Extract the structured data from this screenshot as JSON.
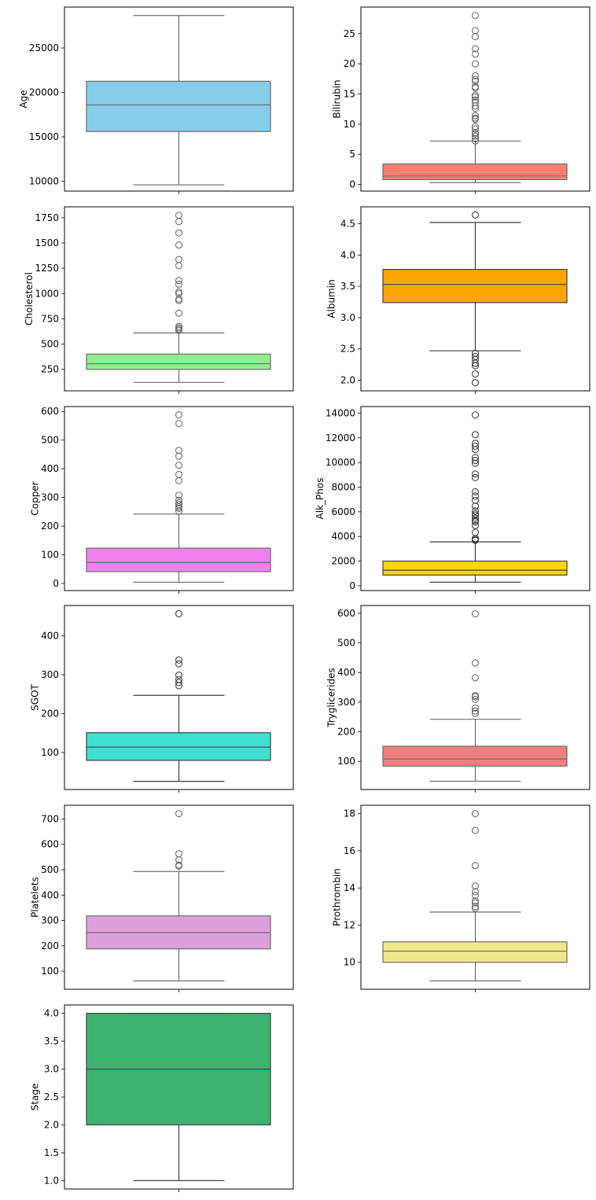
{
  "chart_data": [
    {
      "type": "box",
      "ylabel": "Age",
      "color": "#87CEEB",
      "line_color": "#6b6b6b",
      "ylim": [
        8900,
        29600
      ],
      "yticks": [
        10000,
        15000,
        20000,
        25000
      ],
      "tick_labels": [
        "10000",
        "15000",
        "20000",
        "25000"
      ],
      "stats": {
        "whislo": 9600,
        "q1": 15600,
        "median": 18600,
        "q3": 21250,
        "whishi": 28650
      },
      "outliers": []
    },
    {
      "type": "box",
      "ylabel": "Bilirubin",
      "color": "#FA8072",
      "line_color": "#6b6b6b",
      "ylim": [
        -1.1,
        29.4
      ],
      "yticks": [
        0,
        5,
        10,
        15,
        20,
        25
      ],
      "tick_labels": [
        "0",
        "5",
        "10",
        "15",
        "20",
        "25"
      ],
      "stats": {
        "whislo": 0.3,
        "q1": 0.8,
        "median": 1.4,
        "q3": 3.4,
        "whishi": 7.2
      },
      "outliers": [
        28.0,
        25.5,
        24.5,
        22.5,
        21.6,
        20.0,
        18.0,
        17.4,
        17.1,
        16.2,
        16.0,
        14.8,
        14.5,
        14.0,
        13.6,
        13.0,
        12.6,
        11.4,
        11.0,
        10.8,
        9.6,
        9.2,
        8.6,
        8.4,
        8.0,
        7.6,
        7.2
      ]
    },
    {
      "type": "box",
      "ylabel": "Cholesterol",
      "color": "#90EE90",
      "line_color": "#6b6b6b",
      "ylim": [
        37,
        1858
      ],
      "yticks": [
        250,
        500,
        750,
        1000,
        1250,
        1500,
        1750
      ],
      "tick_labels": [
        "250",
        "500",
        "750",
        "1000",
        "1250",
        "1500",
        "1750"
      ],
      "stats": {
        "whislo": 120,
        "q1": 250,
        "median": 305,
        "q3": 400,
        "whishi": 610
      },
      "outliers": [
        1775,
        1712,
        1600,
        1480,
        1336,
        1276,
        1128,
        1092,
        1015,
        1000,
        945,
        930,
        806,
        674,
        660,
        646,
        636
      ]
    },
    {
      "type": "box",
      "ylabel": "Albumin",
      "color": "#FFA500",
      "line_color": "#3f3f3f",
      "ylim": [
        1.83,
        4.77
      ],
      "yticks": [
        2.0,
        2.5,
        3.0,
        3.5,
        4.0,
        4.5
      ],
      "tick_labels": [
        "2.0",
        "2.5",
        "3.0",
        "3.5",
        "4.0",
        "4.5"
      ],
      "stats": {
        "whislo": 2.47,
        "q1": 3.24,
        "median": 3.53,
        "q3": 3.77,
        "whishi": 4.52
      },
      "outliers": [
        4.64,
        2.43,
        2.38,
        2.33,
        2.27,
        2.23,
        2.1,
        1.96
      ]
    },
    {
      "type": "box",
      "ylabel": "Copper",
      "color": "#EE82EE",
      "line_color": "#6b6b6b",
      "ylim": [
        -25,
        617
      ],
      "yticks": [
        0,
        100,
        200,
        300,
        400,
        500,
        600
      ],
      "tick_labels": [
        "0",
        "100",
        "200",
        "300",
        "400",
        "500",
        "600"
      ],
      "stats": {
        "whislo": 4,
        "q1": 41,
        "median": 73,
        "q3": 123,
        "whishi": 242
      },
      "outliers": [
        588,
        558,
        464,
        444,
        412,
        380,
        358,
        308,
        290,
        281,
        275,
        267,
        262,
        252
      ]
    },
    {
      "type": "box",
      "ylabel": "Alk_Phos",
      "color": "#FFD700",
      "line_color": "#3f3f3f",
      "ylim": [
        -390,
        14540
      ],
      "yticks": [
        0,
        2000,
        4000,
        6000,
        8000,
        10000,
        12000,
        14000
      ],
      "tick_labels": [
        "0",
        "2000",
        "4000",
        "6000",
        "8000",
        "10000",
        "12000",
        "14000"
      ],
      "stats": {
        "whislo": 290,
        "q1": 870,
        "median": 1260,
        "q3": 2000,
        "whishi": 3560
      },
      "outliers": [
        13862,
        12258,
        11552,
        11320,
        11046,
        10396,
        10165,
        9934,
        9066,
        8778,
        7622,
        7277,
        6931,
        6456,
        6064,
        5833,
        5719,
        5487,
        5300,
        5184,
        4882,
        4332,
        3836,
        3740,
        3681
      ]
    },
    {
      "type": "box",
      "ylabel": "SGOT",
      "color": "#40E0D0",
      "line_color": "#3f3f3f",
      "ylim": [
        5,
        478
      ],
      "yticks": [
        100,
        200,
        300,
        400
      ],
      "tick_labels": [
        "100",
        "200",
        "300",
        "400"
      ],
      "stats": {
        "whislo": 26,
        "q1": 80,
        "median": 114,
        "q3": 151,
        "whishi": 247
      },
      "outliers": [
        457,
        338,
        328,
        299,
        288,
        280,
        272
      ]
    },
    {
      "type": "box",
      "ylabel": "Tryglicerides",
      "color": "#F08080",
      "line_color": "#6b6b6b",
      "ylim": [
        5,
        626
      ],
      "yticks": [
        100,
        200,
        300,
        400,
        500,
        600
      ],
      "tick_labels": [
        "100",
        "200",
        "300",
        "400",
        "500",
        "600"
      ],
      "stats": {
        "whislo": 33,
        "q1": 84,
        "median": 108,
        "q3": 151,
        "whishi": 242
      },
      "outliers": [
        598,
        432,
        382,
        322,
        318,
        309,
        280,
        270,
        262
      ]
    },
    {
      "type": "box",
      "ylabel": "Platelets",
      "color": "#DDA0DD",
      "line_color": "#6b6b6b",
      "ylim": [
        29,
        754
      ],
      "yticks": [
        100,
        200,
        300,
        400,
        500,
        600,
        700
      ],
      "tick_labels": [
        "100",
        "200",
        "300",
        "400",
        "500",
        "600",
        "700"
      ],
      "stats": {
        "whislo": 62,
        "q1": 188,
        "median": 252,
        "q3": 318,
        "whishi": 493
      },
      "outliers": [
        721,
        563,
        539,
        518,
        514
      ]
    },
    {
      "type": "box",
      "ylabel": "Prothrombin",
      "color": "#F0E68C",
      "line_color": "#6b6b6b",
      "ylim": [
        8.55,
        18.45
      ],
      "yticks": [
        10,
        12,
        14,
        16,
        18
      ],
      "tick_labels": [
        "10",
        "12",
        "14",
        "16",
        "18"
      ],
      "stats": {
        "whislo": 9.0,
        "q1": 10.0,
        "median": 10.6,
        "q3": 11.1,
        "whishi": 12.7
      },
      "outliers": [
        18.0,
        17.1,
        15.2,
        14.1,
        13.8,
        13.6,
        13.3,
        13.2,
        13.0,
        12.9
      ]
    },
    {
      "type": "box",
      "ylabel": "Stage",
      "color": "#3CB371",
      "line_color": "#3f3f3f",
      "ylim": [
        0.85,
        4.15
      ],
      "yticks": [
        1.0,
        1.5,
        2.0,
        2.5,
        3.0,
        3.5,
        4.0
      ],
      "tick_labels": [
        "1.0",
        "1.5",
        "2.0",
        "2.5",
        "3.0",
        "3.5",
        "4.0"
      ],
      "stats": {
        "whislo": 1,
        "q1": 2,
        "median": 3,
        "q3": 4,
        "whishi": 4
      },
      "outliers": []
    }
  ]
}
